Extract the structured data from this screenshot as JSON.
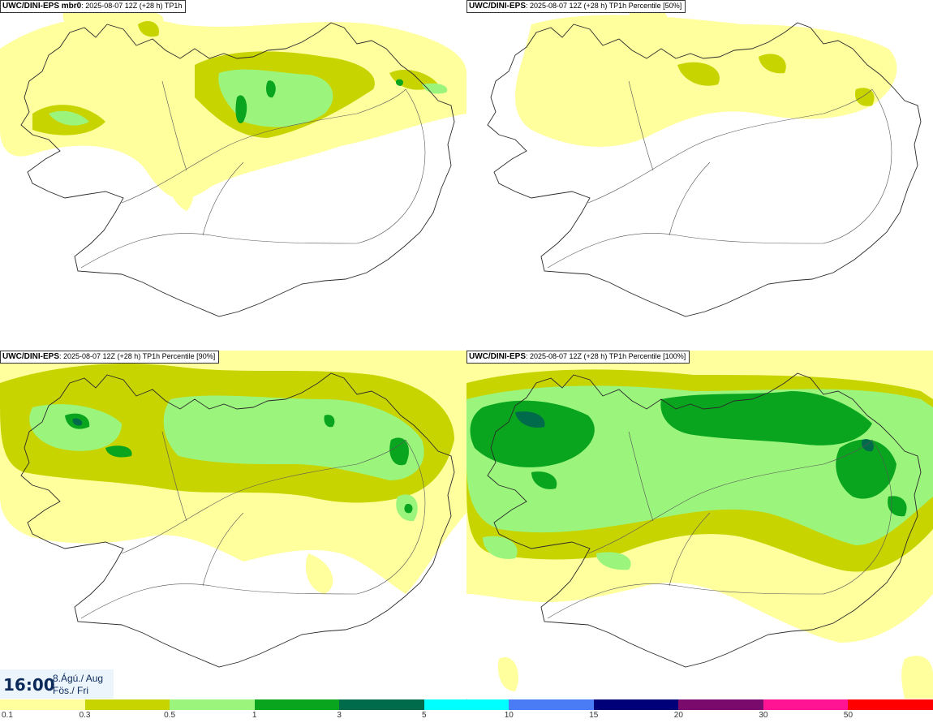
{
  "panels": [
    {
      "model": "UWC/DINI-EPS mbr0",
      "info": ": 2025-08-07 12Z (+28 h) TP1h"
    },
    {
      "model": "UWC/DINI-EPS",
      "info": ": 2025-08-07 12Z (+28 h) TP1h Percentile [50%]"
    },
    {
      "model": "UWC/DINI-EPS",
      "info": ": 2025-08-07 12Z (+28 h) TP1h Percentile [90%]"
    },
    {
      "model": "UWC/DINI-EPS",
      "info": ": 2025-08-07 12Z (+28 h) TP1h Percentile [100%]"
    }
  ],
  "valid_time": {
    "time": "16:00",
    "date_line1": "8.Ágú./ Aug",
    "date_line2": "Fös./ Fri"
  },
  "legend": {
    "colors": [
      "#ffff9e",
      "#c8d400",
      "#9bf57d",
      "#0aa51e",
      "#006b4a",
      "#00ffff",
      "#4a7cf5",
      "#000078",
      "#7a0a6b",
      "#ff1493",
      "#ff0000"
    ],
    "labels": [
      "0.1",
      "0.3",
      "0.5",
      "1",
      "3",
      "5",
      "10",
      "15",
      "20",
      "30",
      "50"
    ]
  }
}
